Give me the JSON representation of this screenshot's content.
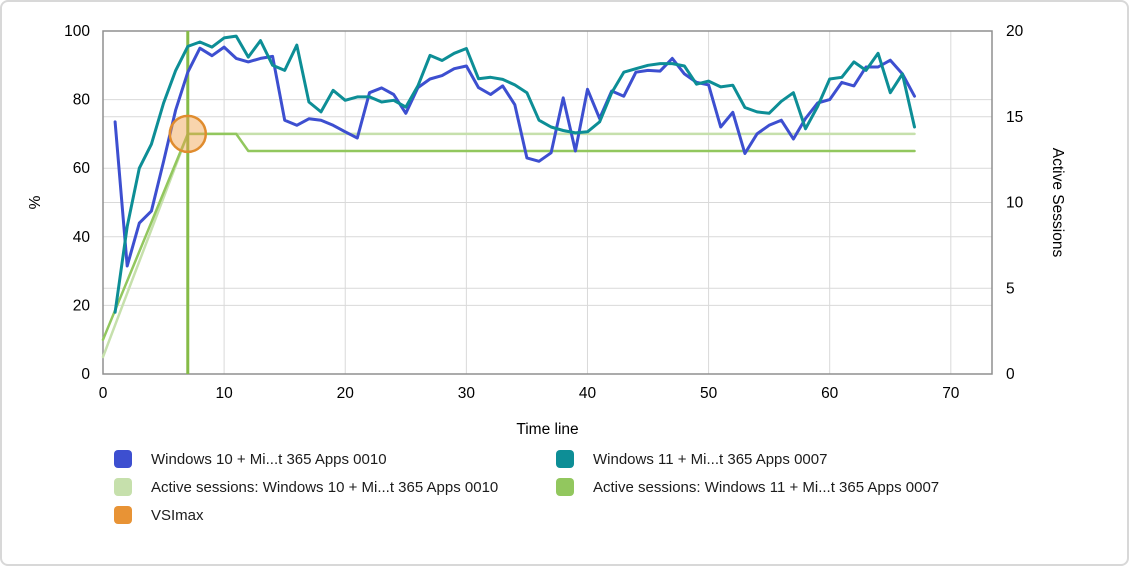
{
  "chart_data": {
    "type": "line",
    "title": "",
    "xlabel": "Time line",
    "ylabel_left": "%",
    "ylabel_right": "Active Sessions",
    "xlim": [
      0,
      73.4
    ],
    "ylim_left": [
      0,
      100
    ],
    "ylim_right": [
      0,
      20
    ],
    "x_ticks": [
      0,
      10,
      20,
      30,
      40,
      50,
      60,
      70
    ],
    "y_ticks_left": [
      0,
      20,
      40,
      60,
      80,
      100
    ],
    "y_ticks_right": [
      0,
      5,
      10,
      15,
      20
    ],
    "grid": true,
    "legend_position": "bottom",
    "series": [
      {
        "name": "Windows 10 + Mi...t 365 Apps 0010",
        "axis": "left",
        "color": "#3d4fd0",
        "width": 3,
        "points": [
          [
            1,
            73.5
          ],
          [
            2,
            31.5
          ],
          [
            3,
            44
          ],
          [
            4,
            47.5
          ],
          [
            5,
            62
          ],
          [
            6,
            77
          ],
          [
            7,
            88
          ],
          [
            8,
            95
          ],
          [
            9,
            92.8
          ],
          [
            10,
            95.3
          ],
          [
            11,
            92
          ],
          [
            12,
            91
          ],
          [
            13,
            92
          ],
          [
            14,
            92.6
          ],
          [
            15,
            74
          ],
          [
            16,
            72.5
          ],
          [
            17,
            74.4
          ],
          [
            18,
            74
          ],
          [
            19,
            72.5
          ],
          [
            20,
            70.6
          ],
          [
            21,
            68.8
          ],
          [
            22,
            82
          ],
          [
            23,
            83.4
          ],
          [
            24,
            81.5
          ],
          [
            25,
            76
          ],
          [
            26,
            83.5
          ],
          [
            27,
            86
          ],
          [
            28,
            87
          ],
          [
            29,
            89
          ],
          [
            30,
            89.8
          ],
          [
            31,
            83.5
          ],
          [
            32,
            81.5
          ],
          [
            33,
            84
          ],
          [
            34,
            78.5
          ],
          [
            35,
            63
          ],
          [
            36,
            62
          ],
          [
            37,
            64.5
          ],
          [
            38,
            80.5
          ],
          [
            39,
            65
          ],
          [
            40,
            83
          ],
          [
            41,
            74.5
          ],
          [
            42,
            82.5
          ],
          [
            43,
            81
          ],
          [
            44,
            88
          ],
          [
            45,
            88.5
          ],
          [
            46,
            88.3
          ],
          [
            47,
            92
          ],
          [
            48,
            87.5
          ],
          [
            49,
            85
          ],
          [
            50,
            84.3
          ],
          [
            51,
            72
          ],
          [
            52,
            76.3
          ],
          [
            53,
            64.3
          ],
          [
            54,
            70
          ],
          [
            55,
            72.5
          ],
          [
            56,
            74
          ],
          [
            57,
            68.5
          ],
          [
            58,
            74.5
          ],
          [
            59,
            79
          ],
          [
            60,
            80
          ],
          [
            61,
            85
          ],
          [
            62,
            84
          ],
          [
            63,
            89.5
          ],
          [
            64,
            89.5
          ],
          [
            65,
            91.5
          ],
          [
            66,
            87.5
          ],
          [
            67,
            81
          ]
        ]
      },
      {
        "name": "Windows 11 + Mi...t 365 Apps 0007",
        "axis": "left",
        "color": "#0d8e96",
        "width": 3,
        "points": [
          [
            1,
            18
          ],
          [
            2,
            43
          ],
          [
            3,
            60
          ],
          [
            4,
            67
          ],
          [
            5,
            79
          ],
          [
            6,
            88.5
          ],
          [
            7,
            95.5
          ],
          [
            8,
            96.8
          ],
          [
            9,
            95.3
          ],
          [
            10,
            98
          ],
          [
            11,
            98.5
          ],
          [
            12,
            92.4
          ],
          [
            13,
            97.2
          ],
          [
            14,
            90
          ],
          [
            15,
            88.5
          ],
          [
            16,
            95.9
          ],
          [
            17,
            79.3
          ],
          [
            18,
            76.4
          ],
          [
            19,
            82.7
          ],
          [
            20,
            79.8
          ],
          [
            21,
            80.8
          ],
          [
            22,
            80.8
          ],
          [
            23,
            79.3
          ],
          [
            24,
            79.8
          ],
          [
            25,
            77.8
          ],
          [
            26,
            84
          ],
          [
            27,
            92.9
          ],
          [
            28,
            91.4
          ],
          [
            29,
            93.5
          ],
          [
            30,
            94.9
          ],
          [
            31,
            86.1
          ],
          [
            32,
            86.5
          ],
          [
            33,
            85.9
          ],
          [
            34,
            84.3
          ],
          [
            35,
            82
          ],
          [
            36,
            74
          ],
          [
            37,
            72
          ],
          [
            38,
            71
          ],
          [
            39,
            70.3
          ],
          [
            40,
            70.6
          ],
          [
            41,
            73.5
          ],
          [
            42,
            82
          ],
          [
            43,
            88
          ],
          [
            44,
            89
          ],
          [
            45,
            90
          ],
          [
            46,
            90.5
          ],
          [
            47,
            90.5
          ],
          [
            48,
            89.8
          ],
          [
            49,
            84.5
          ],
          [
            50,
            85.4
          ],
          [
            51,
            83.7
          ],
          [
            52,
            84.2
          ],
          [
            53,
            77.7
          ],
          [
            54,
            76.4
          ],
          [
            55,
            76
          ],
          [
            56,
            79.5
          ],
          [
            57,
            82
          ],
          [
            58,
            71.5
          ],
          [
            59,
            78
          ],
          [
            60,
            86
          ],
          [
            61,
            86.5
          ],
          [
            62,
            91
          ],
          [
            63,
            88.5
          ],
          [
            64,
            93.5
          ],
          [
            65,
            82
          ],
          [
            66,
            87.5
          ],
          [
            67,
            72
          ]
        ]
      },
      {
        "name": "Active sessions: Windows 10 + Mi...t 365 Apps 0010",
        "axis": "right",
        "color": "#c6e0ac",
        "width": 2.5,
        "points": [
          [
            0,
            1
          ],
          [
            7,
            14
          ],
          [
            67,
            14
          ]
        ]
      },
      {
        "name": "Active sessions: Windows 11 + Mi...t 365 Apps 0007",
        "axis": "right",
        "color": "#92c75e",
        "width": 2.5,
        "points": [
          [
            0,
            2
          ],
          [
            7,
            14
          ],
          [
            11,
            14
          ],
          [
            12,
            13
          ],
          [
            67,
            13
          ]
        ]
      }
    ],
    "vsimax": {
      "label": "VSImax",
      "x": 7,
      "y_percent": 70,
      "line_color": "#85bb47",
      "marker_stroke": "#e08c2e",
      "marker_fill": "#f0a04a",
      "marker_opacity": 0.45,
      "marker_radius": 18
    }
  },
  "legend": {
    "items": [
      {
        "label": "Windows 10 + Mi...t 365 Apps 0010",
        "color": "#3d4fd0"
      },
      {
        "label": "Windows 11 + Mi...t 365 Apps 0007",
        "color": "#0d8e96"
      },
      {
        "label": "Active sessions: Windows 10 + Mi...t 365 Apps 0010",
        "color": "#c6e0ac"
      },
      {
        "label": "Active sessions: Windows 11 + Mi...t 365 Apps 0007",
        "color": "#92c75e"
      },
      {
        "label": "VSImax",
        "color": "#e89335"
      }
    ]
  },
  "colors": {
    "grid": "#d9d9d9",
    "plot_border": "#8f8f8f",
    "text": "#000000"
  }
}
